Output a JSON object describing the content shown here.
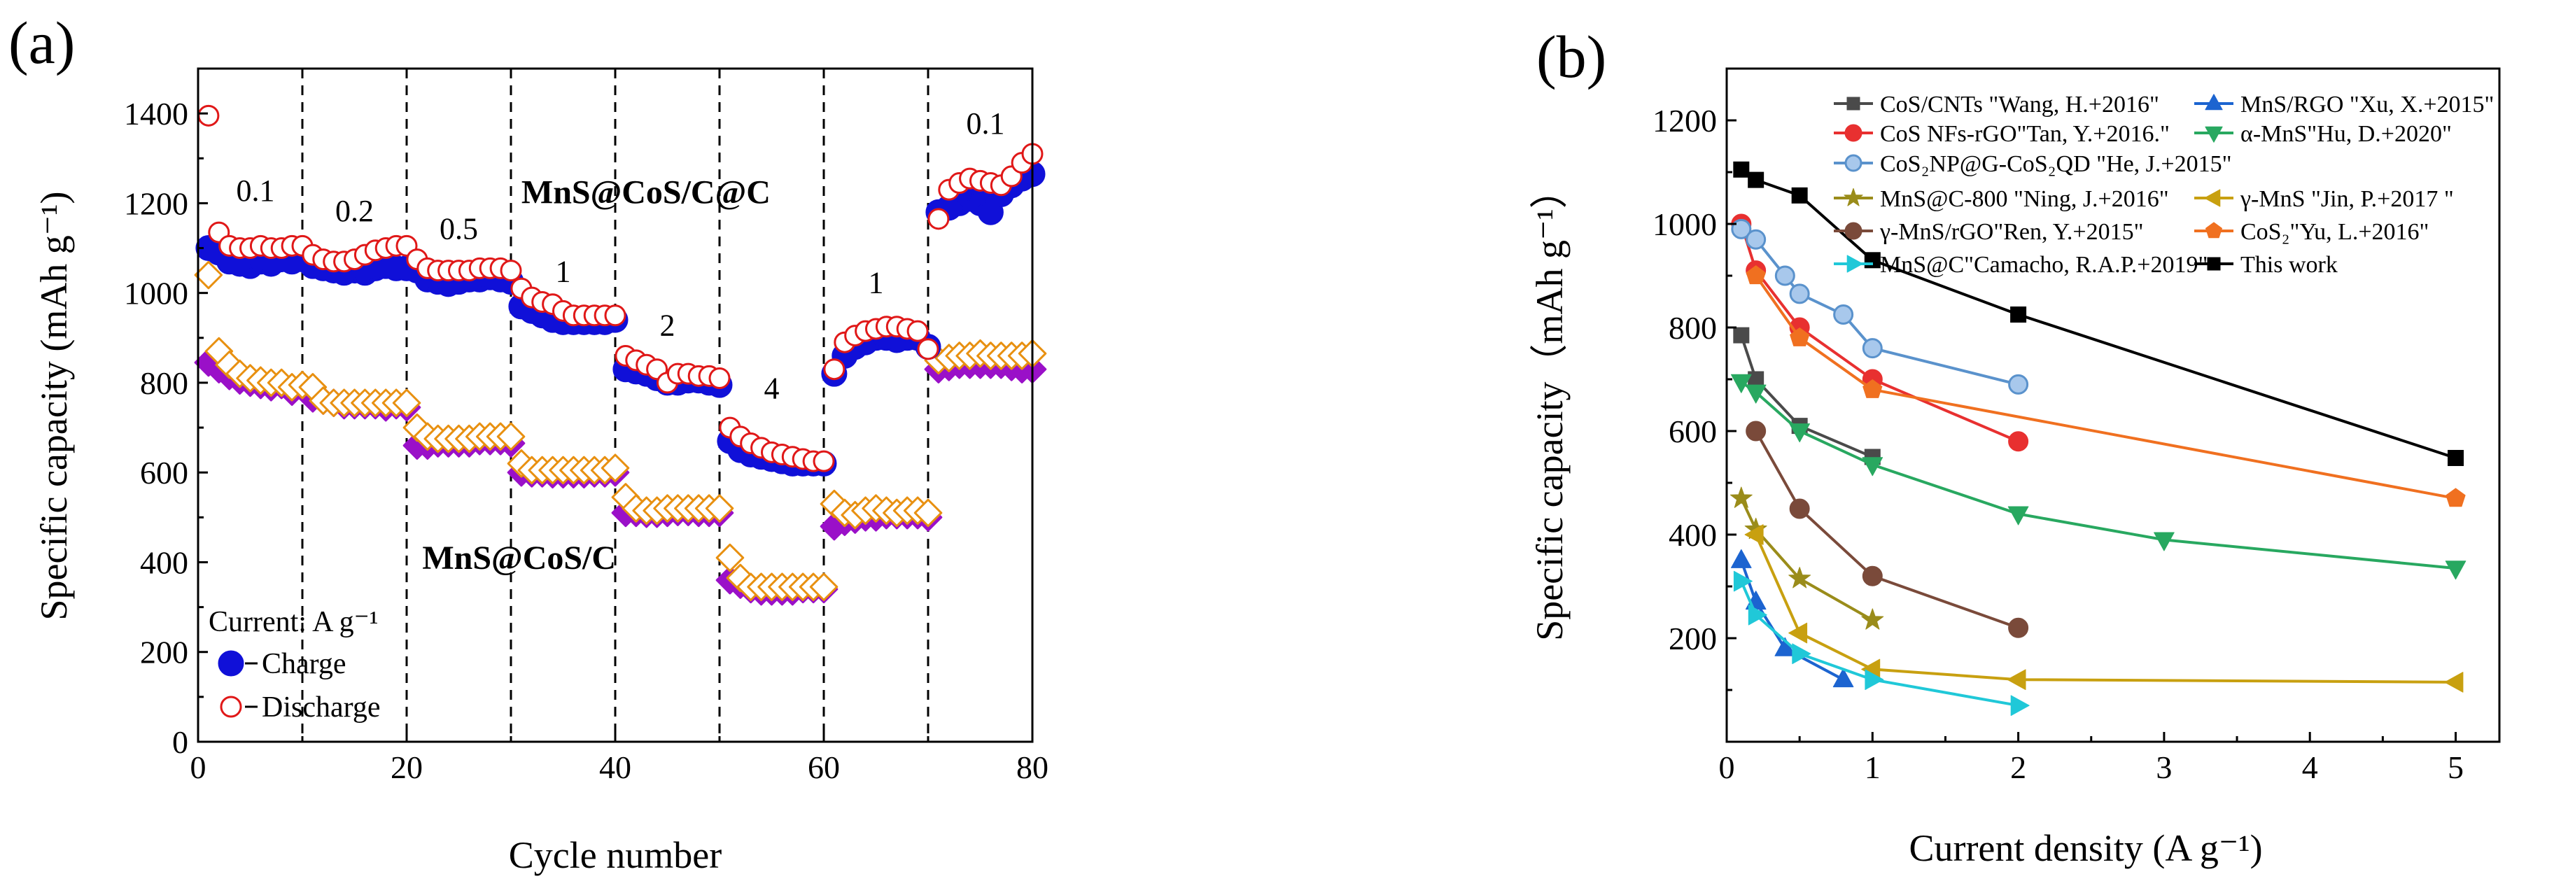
{
  "panels": {
    "a": {
      "label": "(a)"
    },
    "b": {
      "label": "(b)"
    }
  },
  "colors": {
    "charge": "#1010d8",
    "discharge_edge": "#e01818",
    "c_fill": "#9a10c8",
    "c_edge": "#e89010"
  },
  "chart_data": [
    {
      "id": "a",
      "type": "scatter",
      "title": "",
      "xlabel": "Cycle number",
      "ylabel": "Specific capacity (mAh g⁻¹)",
      "xlim": [
        0,
        80
      ],
      "ylim": [
        0,
        1500
      ],
      "xticks": [
        0,
        20,
        40,
        60,
        80
      ],
      "yticks": [
        0,
        200,
        400,
        600,
        800,
        1000,
        1200,
        1400
      ],
      "boundaries": [
        10,
        20,
        30,
        40,
        50,
        60,
        70
      ],
      "rate_labels": [
        {
          "text": "0.1",
          "x": 5.5,
          "y": 1205
        },
        {
          "text": "0.2",
          "x": 15,
          "y": 1160
        },
        {
          "text": "0.5",
          "x": 25,
          "y": 1120
        },
        {
          "text": "1",
          "x": 35,
          "y": 1025
        },
        {
          "text": "2",
          "x": 45,
          "y": 905
        },
        {
          "text": "4",
          "x": 55,
          "y": 765
        },
        {
          "text": "1",
          "x": 65,
          "y": 1000
        },
        {
          "text": "0.1",
          "x": 75.5,
          "y": 1355
        }
      ],
      "annotations": [
        {
          "text": "MnS@CoS/C@C",
          "x": 31,
          "y": 1200,
          "bold": true
        },
        {
          "text": "MnS@CoS/C",
          "x": 21.5,
          "y": 385,
          "bold": true
        }
      ],
      "legend_title": "Current: A g⁻¹",
      "legend_placement": "bottom-left",
      "series": [
        {
          "name": "Charge",
          "group": "MnS@CoS/C@C",
          "marker": "filled-circle",
          "values": [
            1100,
            1090,
            1070,
            1065,
            1060,
            1070,
            1065,
            1075,
            1070,
            1075,
            1060,
            1055,
            1050,
            1045,
            1050,
            1045,
            1055,
            1060,
            1055,
            1055,
            1050,
            1030,
            1025,
            1020,
            1025,
            1030,
            1030,
            1035,
            1030,
            1025,
            970,
            960,
            950,
            940,
            935,
            935,
            935,
            935,
            935,
            940,
            830,
            825,
            820,
            810,
            800,
            800,
            805,
            805,
            800,
            795,
            670,
            650,
            640,
            635,
            630,
            625,
            620,
            620,
            620,
            620,
            820,
            860,
            880,
            890,
            900,
            900,
            895,
            900,
            900,
            880,
            1180,
            1190,
            1200,
            1210,
            1200,
            1180,
            1220,
            1240,
            1255,
            1265
          ]
        },
        {
          "name": "Discharge",
          "group": "MnS@CoS/C@C",
          "marker": "open-circle",
          "values": [
            1395,
            1135,
            1105,
            1100,
            1100,
            1105,
            1100,
            1100,
            1105,
            1105,
            1085,
            1075,
            1070,
            1070,
            1075,
            1085,
            1095,
            1100,
            1105,
            1105,
            1075,
            1055,
            1050,
            1050,
            1050,
            1050,
            1055,
            1055,
            1055,
            1050,
            1010,
            990,
            980,
            975,
            960,
            950,
            950,
            950,
            950,
            950,
            860,
            850,
            840,
            830,
            800,
            820,
            820,
            815,
            815,
            810,
            700,
            680,
            665,
            655,
            645,
            640,
            635,
            630,
            625,
            625,
            830,
            890,
            905,
            915,
            920,
            925,
            925,
            920,
            915,
            875,
            1165,
            1230,
            1245,
            1255,
            1250,
            1245,
            1240,
            1260,
            1290,
            1310
          ]
        },
        {
          "name": "MnS@CoS/C charge",
          "group": "MnS@CoS/C",
          "marker": "filled-diamond",
          "values": [
            845,
            830,
            815,
            805,
            800,
            795,
            790,
            795,
            780,
            790,
            765,
            760,
            755,
            750,
            750,
            750,
            750,
            745,
            750,
            745,
            660,
            660,
            665,
            665,
            665,
            665,
            670,
            670,
            670,
            665,
            600,
            598,
            598,
            596,
            596,
            596,
            596,
            598,
            598,
            600,
            510,
            510,
            508,
            508,
            510,
            512,
            512,
            510,
            510,
            510,
            360,
            350,
            340,
            335,
            335,
            335,
            335,
            340,
            340,
            340,
            480,
            490,
            495,
            500,
            500,
            505,
            505,
            505,
            505,
            500,
            830,
            835,
            840,
            840,
            840,
            840,
            840,
            835,
            830,
            830
          ]
        },
        {
          "name": "MnS@CoS/C discharge",
          "group": "MnS@CoS/C",
          "marker": "open-diamond",
          "values": [
            1040,
            870,
            840,
            820,
            810,
            805,
            800,
            800,
            790,
            795,
            790,
            760,
            755,
            755,
            755,
            755,
            755,
            755,
            755,
            755,
            700,
            680,
            675,
            675,
            675,
            675,
            680,
            680,
            680,
            680,
            620,
            605,
            605,
            605,
            605,
            605,
            605,
            605,
            605,
            610,
            545,
            520,
            515,
            515,
            520,
            520,
            520,
            520,
            520,
            520,
            410,
            365,
            345,
            345,
            345,
            345,
            345,
            345,
            345,
            345,
            530,
            510,
            505,
            515,
            520,
            515,
            510,
            515,
            515,
            510,
            850,
            855,
            860,
            860,
            865,
            860,
            860,
            860,
            860,
            865
          ]
        }
      ]
    },
    {
      "id": "b",
      "type": "line",
      "xlabel": "Current density (A g⁻¹)",
      "ylabel": "Specific capacity（mAh g⁻¹）",
      "xlim": [
        0,
        5.3
      ],
      "ylim": [
        0,
        1300
      ],
      "xticks": [
        0,
        1,
        2,
        3,
        4,
        5
      ],
      "yticks": [
        200,
        400,
        600,
        800,
        1000,
        1200
      ],
      "legend_placement": "top-right",
      "series": [
        {
          "name": "CoS/CNTs \"Wang, H.+2016\"",
          "color": "#4a4a4a",
          "marker": "square",
          "x": [
            0.1,
            0.2,
            0.5,
            1.0
          ],
          "y": [
            785,
            700,
            610,
            550
          ]
        },
        {
          "name": "MnS/RGO \"Xu, X.+2015\"",
          "color": "#1c64d0",
          "marker": "triangle-up",
          "x": [
            0.1,
            0.2,
            0.4,
            0.8
          ],
          "y": [
            350,
            270,
            180,
            120
          ]
        },
        {
          "name": "CoS NFs-rGO\"Tan, Y.+2016.\"",
          "color": "#e83030",
          "marker": "circle",
          "x": [
            0.1,
            0.2,
            0.5,
            1.0,
            2.0
          ],
          "y": [
            1000,
            910,
            800,
            700,
            580
          ]
        },
        {
          "name": "α-MnS\"Hu, D.+2020\"",
          "color": "#28a860",
          "marker": "triangle-down",
          "x": [
            0.1,
            0.2,
            0.5,
            1.0,
            2.0,
            3.0,
            5.0
          ],
          "y": [
            695,
            675,
            600,
            535,
            440,
            390,
            335
          ]
        },
        {
          "name": "CoS₂NP@G-CoS₂QD \"He, J.+2015\"",
          "color": "#5a92cc",
          "marker": "circle-light",
          "x": [
            0.1,
            0.2,
            0.4,
            0.5,
            0.8,
            1.0,
            2.0
          ],
          "y": [
            990,
            970,
            900,
            865,
            825,
            760,
            690
          ]
        },
        {
          "name": "MnS@C-800 \"Ning, J.+2016\"",
          "color": "#9a8c1a",
          "marker": "star",
          "x": [
            0.1,
            0.2,
            0.5,
            1.0
          ],
          "y": [
            470,
            410,
            315,
            235
          ]
        },
        {
          "name": "γ-MnS \"Jin, P.+2017 \"",
          "color": "#c8a010",
          "marker": "triangle-left",
          "x": [
            0.2,
            0.5,
            1.0,
            2.0,
            5.0
          ],
          "y": [
            400,
            210,
            140,
            120,
            115
          ]
        },
        {
          "name": "γ-MnS/rGO\"Ren, Y.+2015\"",
          "color": "#7a4a3a",
          "marker": "circle",
          "x": [
            0.2,
            0.5,
            1.0,
            2.0
          ],
          "y": [
            600,
            450,
            320,
            220
          ]
        },
        {
          "name": "CoS₂\"Yu, L.+2016\"",
          "color": "#f07020",
          "marker": "pentagon",
          "x": [
            0.2,
            0.5,
            1.0,
            5.0
          ],
          "y": [
            900,
            780,
            680,
            470
          ]
        },
        {
          "name": "MnS@C\"Camacho, R.A.P.+2019\"",
          "color": "#20c8d8",
          "marker": "triangle-right",
          "x": [
            0.1,
            0.2,
            0.5,
            1.0,
            2.0
          ],
          "y": [
            310,
            245,
            170,
            120,
            70
          ]
        },
        {
          "name": "This work",
          "color": "#000000",
          "marker": "square",
          "x": [
            0.1,
            0.2,
            0.5,
            1.0,
            2.0,
            5.0
          ],
          "y": [
            1105,
            1085,
            1055,
            930,
            825,
            548
          ]
        }
      ]
    }
  ]
}
